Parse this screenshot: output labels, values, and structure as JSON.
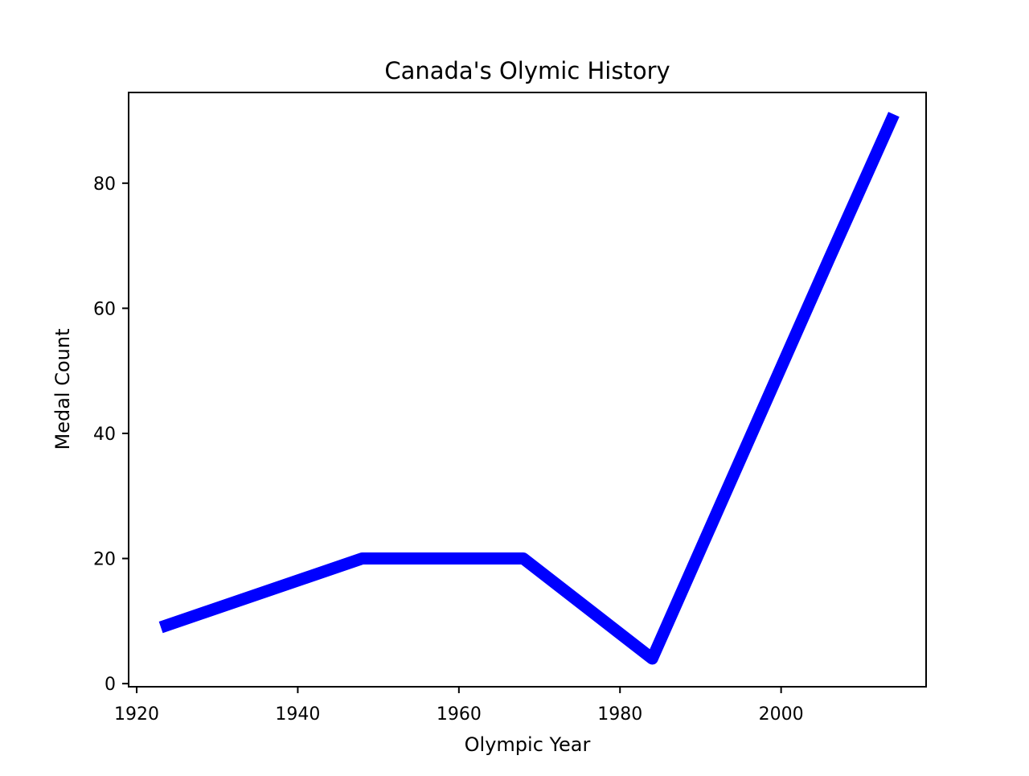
{
  "chart_data": {
    "type": "line",
    "title": "Canada's Olymic History",
    "xlabel": "Olympic Year",
    "ylabel": "Medal Count",
    "xlim": [
      1919,
      2018
    ],
    "ylim": [
      -0.5,
      94.5
    ],
    "xticks": [
      1920,
      1940,
      1960,
      1980,
      2000
    ],
    "yticks": [
      0,
      20,
      40,
      60,
      80
    ],
    "x_tick_labels": [
      "1920",
      "1940",
      "1960",
      "1980",
      "2000"
    ],
    "y_tick_labels": [
      "0",
      "20",
      "40",
      "60",
      "80"
    ],
    "grid": false,
    "legend": "none",
    "series": [
      {
        "color": "#0000ff",
        "x": [
          1923,
          1948,
          1968,
          1984,
          2006,
          2014
        ],
        "y": [
          9,
          20,
          20,
          4,
          68,
          91
        ]
      }
    ]
  }
}
